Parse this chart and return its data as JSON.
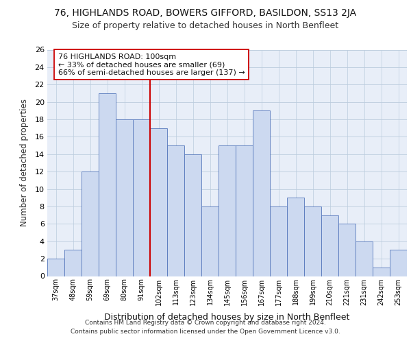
{
  "title1": "76, HIGHLANDS ROAD, BOWERS GIFFORD, BASILDON, SS13 2JA",
  "title2": "Size of property relative to detached houses in North Benfleet",
  "xlabel": "Distribution of detached houses by size in North Benfleet",
  "ylabel": "Number of detached properties",
  "categories": [
    "37sqm",
    "48sqm",
    "59sqm",
    "69sqm",
    "80sqm",
    "91sqm",
    "102sqm",
    "113sqm",
    "123sqm",
    "134sqm",
    "145sqm",
    "156sqm",
    "167sqm",
    "177sqm",
    "188sqm",
    "199sqm",
    "210sqm",
    "221sqm",
    "231sqm",
    "242sqm",
    "253sqm"
  ],
  "values": [
    2,
    3,
    12,
    21,
    18,
    18,
    17,
    15,
    14,
    8,
    15,
    15,
    19,
    8,
    9,
    8,
    7,
    6,
    4,
    1,
    3
  ],
  "bar_color": "#ccd9f0",
  "bar_edge_color": "#5577bb",
  "highlight_idx": 6,
  "highlight_color": "#cc0000",
  "annotation_line1": "76 HIGHLANDS ROAD: 100sqm",
  "annotation_line2": "← 33% of detached houses are smaller (69)",
  "annotation_line3": "66% of semi-detached houses are larger (137) →",
  "annotation_box_color": "#ffffff",
  "annotation_box_edge": "#cc0000",
  "ylim": [
    0,
    26
  ],
  "yticks": [
    0,
    2,
    4,
    6,
    8,
    10,
    12,
    14,
    16,
    18,
    20,
    22,
    24,
    26
  ],
  "grid_color": "#bbccdd",
  "bg_color": "#e8eef8",
  "footer1": "Contains HM Land Registry data © Crown copyright and database right 2024.",
  "footer2": "Contains public sector information licensed under the Open Government Licence v3.0."
}
